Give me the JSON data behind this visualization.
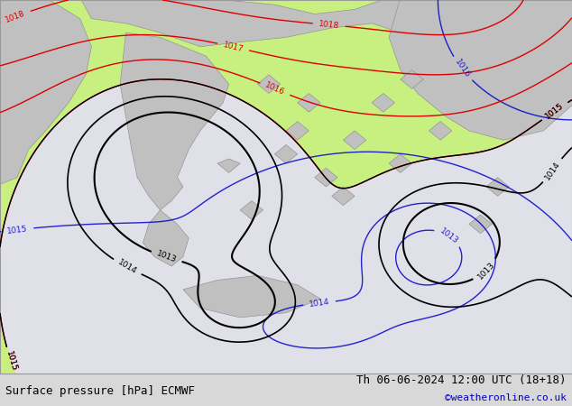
{
  "title_left": "Surface pressure [hPa] ECMWF",
  "title_right": "Th 06-06-2024 12:00 UTC (18+18)",
  "copyright": "©weatheronline.co.uk",
  "bg_color": "#d8d8d8",
  "land_color": "#c0c0c0",
  "green_color": "#c8f080",
  "sea_color": "#e0e0e8",
  "contour_black": "#000000",
  "contour_red": "#dd0000",
  "contour_blue": "#0000cc",
  "contour_gray": "#888888",
  "label_fontsize": 6.5,
  "title_fontsize": 9,
  "copyright_color": "#0000bb"
}
